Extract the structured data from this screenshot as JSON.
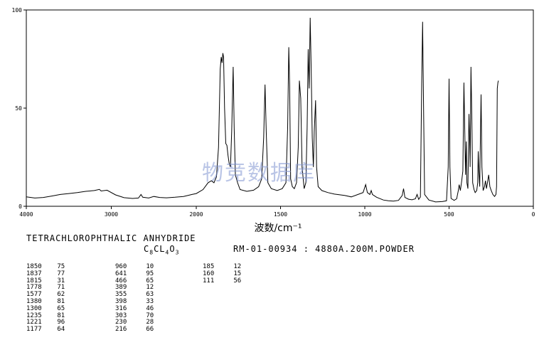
{
  "chart_data": {
    "type": "line",
    "xlabel": "波数/cm⁻¹",
    "ylabel": "",
    "xlim": [
      4000,
      0
    ],
    "ylim": [
      0,
      100
    ],
    "x_ticks": [
      4000,
      3000,
      2000,
      1500,
      1000,
      500,
      0
    ],
    "y_ticks": [
      0,
      50,
      100
    ],
    "grid": false,
    "series": [
      {
        "points": [
          [
            4000,
            4.8
          ],
          [
            3900,
            4.2
          ],
          [
            3800,
            4.5
          ],
          [
            3700,
            5.2
          ],
          [
            3600,
            6.0
          ],
          [
            3500,
            6.5
          ],
          [
            3400,
            7.0
          ],
          [
            3300,
            7.6
          ],
          [
            3200,
            8.0
          ],
          [
            3140,
            8.6
          ],
          [
            3120,
            7.8
          ],
          [
            3050,
            8.2
          ],
          [
            2950,
            5.8
          ],
          [
            2850,
            4.4
          ],
          [
            2750,
            4.0
          ],
          [
            2680,
            4.2
          ],
          [
            2650,
            6.0
          ],
          [
            2630,
            4.6
          ],
          [
            2560,
            4.2
          ],
          [
            2500,
            5.0
          ],
          [
            2430,
            4.5
          ],
          [
            2350,
            4.3
          ],
          [
            2250,
            4.6
          ],
          [
            2150,
            5.0
          ],
          [
            2050,
            6.0
          ],
          [
            2000,
            6.5
          ],
          [
            1960,
            8.5
          ],
          [
            1930,
            12
          ],
          [
            1910,
            13
          ],
          [
            1895,
            12
          ],
          [
            1880,
            15
          ],
          [
            1868,
            30
          ],
          [
            1858,
            70
          ],
          [
            1852,
            76
          ],
          [
            1847,
            73
          ],
          [
            1842,
            78
          ],
          [
            1838,
            76
          ],
          [
            1832,
            50
          ],
          [
            1825,
            32
          ],
          [
            1818,
            31
          ],
          [
            1812,
            26
          ],
          [
            1805,
            22
          ],
          [
            1797,
            20
          ],
          [
            1790,
            38
          ],
          [
            1781,
            71
          ],
          [
            1775,
            40
          ],
          [
            1768,
            16
          ],
          [
            1755,
            12
          ],
          [
            1740,
            8.5
          ],
          [
            1700,
            7.6
          ],
          [
            1660,
            8.2
          ],
          [
            1630,
            10
          ],
          [
            1612,
            14
          ],
          [
            1600,
            35
          ],
          [
            1592,
            62
          ],
          [
            1585,
            38
          ],
          [
            1575,
            12
          ],
          [
            1555,
            9
          ],
          [
            1520,
            8
          ],
          [
            1490,
            9
          ],
          [
            1468,
            12
          ],
          [
            1458,
            40
          ],
          [
            1451,
            81
          ],
          [
            1446,
            62
          ],
          [
            1440,
            14
          ],
          [
            1430,
            10
          ],
          [
            1418,
            9
          ],
          [
            1405,
            12
          ],
          [
            1395,
            30
          ],
          [
            1388,
            64
          ],
          [
            1380,
            55
          ],
          [
            1372,
            20
          ],
          [
            1360,
            9
          ],
          [
            1350,
            12
          ],
          [
            1342,
            40
          ],
          [
            1336,
            80
          ],
          [
            1330,
            60
          ],
          [
            1324,
            96
          ],
          [
            1318,
            70
          ],
          [
            1312,
            35
          ],
          [
            1305,
            20
          ],
          [
            1300,
            38
          ],
          [
            1292,
            54
          ],
          [
            1286,
            20
          ],
          [
            1277,
            10
          ],
          [
            1255,
            8
          ],
          [
            1220,
            7
          ],
          [
            1180,
            6.2
          ],
          [
            1120,
            5.5
          ],
          [
            1080,
            4.8
          ],
          [
            1010,
            7
          ],
          [
            995,
            11
          ],
          [
            985,
            7
          ],
          [
            970,
            6
          ],
          [
            962,
            8
          ],
          [
            955,
            6
          ],
          [
            930,
            4.6
          ],
          [
            890,
            3.2
          ],
          [
            860,
            2.8
          ],
          [
            830,
            2.6
          ],
          [
            800,
            3.0
          ],
          [
            778,
            5.5
          ],
          [
            770,
            9
          ],
          [
            762,
            4.5
          ],
          [
            740,
            3.6
          ],
          [
            720,
            3.3
          ],
          [
            700,
            3.8
          ],
          [
            690,
            6
          ],
          [
            680,
            3.5
          ],
          [
            670,
            4.8
          ],
          [
            662,
            65
          ],
          [
            657,
            94
          ],
          [
            652,
            55
          ],
          [
            645,
            6
          ],
          [
            620,
            3.2
          ],
          [
            580,
            2.2
          ],
          [
            540,
            2.4
          ],
          [
            515,
            2.8
          ],
          [
            505,
            20
          ],
          [
            500,
            65
          ],
          [
            495,
            20
          ],
          [
            488,
            4
          ],
          [
            470,
            3
          ],
          [
            455,
            3.8
          ],
          [
            445,
            8
          ],
          [
            440,
            11
          ],
          [
            433,
            8
          ],
          [
            425,
            13
          ],
          [
            418,
            18
          ],
          [
            412,
            63
          ],
          [
            407,
            40
          ],
          [
            402,
            16
          ],
          [
            398,
            33
          ],
          [
            394,
            12
          ],
          [
            388,
            9
          ],
          [
            382,
            47
          ],
          [
            378,
            35
          ],
          [
            375,
            20
          ],
          [
            370,
            71
          ],
          [
            365,
            45
          ],
          [
            360,
            12
          ],
          [
            352,
            8.5
          ],
          [
            345,
            7
          ],
          [
            336,
            8
          ],
          [
            330,
            12
          ],
          [
            327,
            28
          ],
          [
            323,
            18
          ],
          [
            318,
            10
          ],
          [
            313,
            40
          ],
          [
            310,
            57
          ],
          [
            305,
            20
          ],
          [
            298,
            8
          ],
          [
            290,
            10
          ],
          [
            284,
            13
          ],
          [
            278,
            9
          ],
          [
            272,
            12
          ],
          [
            265,
            16
          ],
          [
            258,
            10
          ],
          [
            250,
            8
          ],
          [
            240,
            6
          ],
          [
            230,
            5
          ],
          [
            222,
            6
          ],
          [
            218,
            10
          ],
          [
            214,
            60
          ],
          [
            210,
            63
          ],
          [
            207,
            64
          ]
        ]
      }
    ]
  },
  "compound_name": "TETRACHLOROPHTHALIC ANHYDRIDE",
  "formula": {
    "c": "C",
    "c_n": "8",
    "cl": "CL",
    "cl_n": "4",
    "o": "O",
    "o_n": "3"
  },
  "reference": "RM-01-00934 : 4880A.200M.POWDER",
  "watermark": "物竞数据库",
  "peak_columns": [
    {
      "wavenumbers": [
        "1850",
        "1837",
        "1815",
        "1778",
        "1577",
        "1380",
        "1300",
        "1235",
        "1221",
        "1177"
      ],
      "intensities": [
        "75",
        "77",
        "31",
        "71",
        "62",
        "81",
        "65",
        "81",
        "96",
        "64"
      ]
    },
    {
      "wavenumbers": [
        "960",
        "641",
        "466",
        "389",
        "355",
        "398",
        "316",
        "303",
        "230",
        "216"
      ],
      "intensities": [
        "10",
        "95",
        "65",
        "12",
        "63",
        "33",
        "46",
        "70",
        "28",
        "66"
      ]
    },
    {
      "wavenumbers": [
        "185",
        "160",
        "111"
      ],
      "intensities": [
        "12",
        "15",
        "56"
      ]
    }
  ]
}
